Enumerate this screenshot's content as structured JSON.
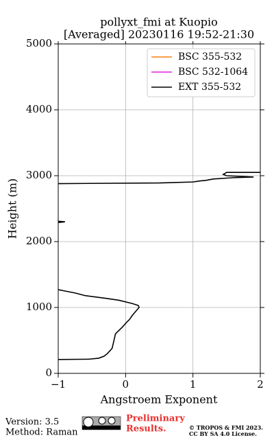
{
  "chart_data": {
    "type": "line",
    "title": "pollyxt_fmi at Kuopio",
    "subtitle": "[Averaged] 20230116 19:52-21:30",
    "x_label": "Angstroem Exponent",
    "y_label": "Height (m)",
    "xlim": [
      -1,
      2
    ],
    "ylim": [
      0,
      5000
    ],
    "xticks": [
      {
        "value": -1,
        "label": "−1"
      },
      0,
      1,
      2
    ],
    "yticks": [
      0,
      1000,
      2000,
      3000,
      4000,
      5000
    ],
    "grid": true,
    "legend": "upper right",
    "series": [
      {
        "name": "BSC 355-532",
        "color": "#ff7f0e",
        "x": [],
        "values": []
      },
      {
        "name": "BSC 532-1064",
        "color": "#e020e0",
        "x": [],
        "values": []
      },
      {
        "name": "EXT 355-532",
        "color": "#000000",
        "x": [
          -1,
          -0.55,
          -0.4,
          -0.32,
          -0.27,
          -0.2,
          -0.15,
          -0.13,
          -0.05,
          0.02,
          0.06,
          0.1,
          0.15,
          0.2,
          0.19,
          0.1,
          -0.1,
          -0.3,
          -0.6,
          -0.75,
          -0.9,
          -1,
          null,
          -1,
          -0.9,
          -1,
          null,
          -1,
          0.5,
          1.0,
          1.1,
          1.2,
          1.3,
          1.6,
          1.9,
          1.5,
          1.45,
          1.5,
          2
        ],
        "values": [
          210,
          215,
          230,
          260,
          300,
          380,
          600,
          620,
          700,
          780,
          820,
          880,
          940,
          1000,
          1030,
          1060,
          1110,
          1140,
          1180,
          1220,
          1250,
          1270,
          null,
          2310,
          2300,
          2290,
          null,
          2880,
          2890,
          2905,
          2920,
          2930,
          2950,
          2970,
          2980,
          3000,
          3020,
          3050,
          3050
        ]
      }
    ]
  },
  "footer": {
    "version": "Version: 3.5",
    "method": "Method: Raman",
    "preliminary": "Preliminary",
    "results": "Results.",
    "copyright": "© TROPOS & FMI 2023.",
    "license": "CC BY SA 4.0 License."
  }
}
